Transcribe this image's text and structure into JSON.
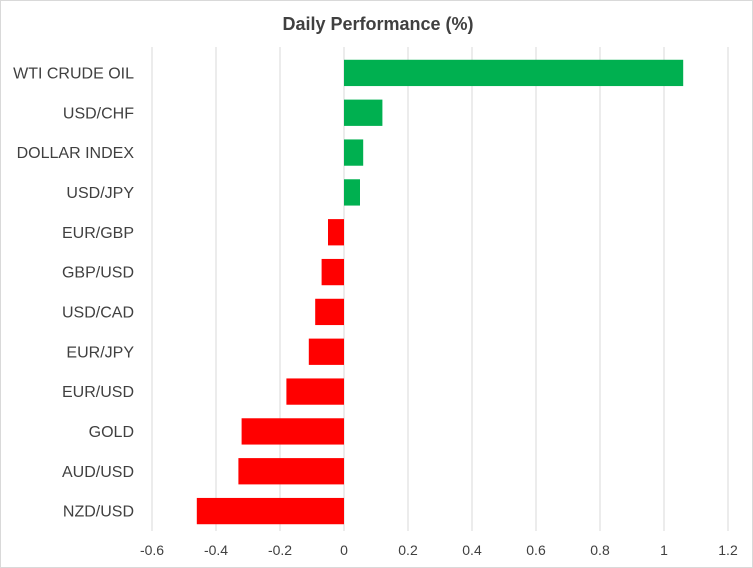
{
  "chart_data": {
    "type": "bar",
    "orientation": "horizontal",
    "title": "Daily Performance  (%)",
    "xlabel": "",
    "ylabel": "",
    "categories": [
      "WTI CRUDE OIL",
      "USD/CHF",
      "DOLLAR INDEX",
      "USD/JPY",
      "EUR/GBP",
      "GBP/USD",
      "USD/CAD",
      "EUR/JPY",
      "EUR/USD",
      "GOLD",
      "AUD/USD",
      "NZD/USD"
    ],
    "values": [
      1.06,
      0.12,
      0.06,
      0.05,
      -0.05,
      -0.07,
      -0.09,
      -0.11,
      -0.18,
      -0.32,
      -0.33,
      -0.46
    ],
    "xlim": [
      -0.6,
      1.2
    ],
    "x_ticks": [
      -0.6,
      -0.4,
      -0.2,
      0,
      0.2,
      0.4,
      0.6,
      0.8,
      1,
      1.2
    ],
    "x_tick_labels": [
      "-0.6",
      "-0.4",
      "-0.2",
      "0",
      "0.2",
      "0.4",
      "0.6",
      "0.8",
      "1",
      "1.2"
    ],
    "grid": "vertical",
    "legend": "none",
    "positive_color": "#00b050",
    "negative_color": "#ff0000"
  }
}
